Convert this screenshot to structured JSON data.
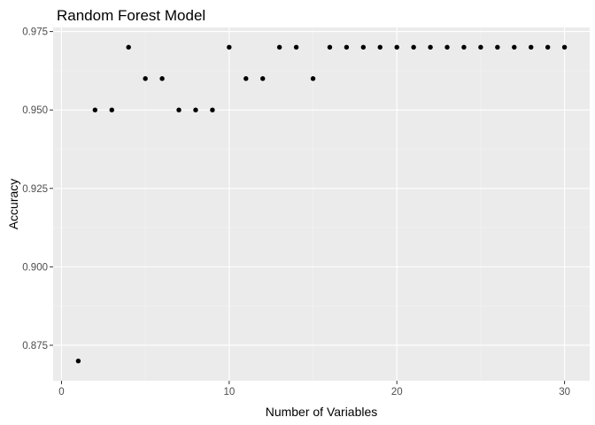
{
  "chart_data": {
    "type": "scatter",
    "title": "Random Forest Model",
    "xlabel": "Number of Variables",
    "ylabel": "Accuracy",
    "xlim": [
      -0.5,
      31.5
    ],
    "ylim": [
      0.8637,
      0.9763
    ],
    "x_ticks": [
      0,
      10,
      20,
      30
    ],
    "x_tick_labels": [
      "0",
      "10",
      "20",
      "30"
    ],
    "y_ticks": [
      0.875,
      0.9,
      0.925,
      0.95,
      0.975
    ],
    "y_tick_labels": [
      "0.875",
      "0.900",
      "0.925",
      "0.950",
      "0.975"
    ],
    "grid": true,
    "point_color": "#000000",
    "panel_color": "#ebebeb",
    "x": [
      1,
      2,
      3,
      4,
      5,
      6,
      7,
      8,
      9,
      10,
      11,
      12,
      13,
      14,
      15,
      16,
      17,
      18,
      19,
      20,
      21,
      22,
      23,
      24,
      25,
      26,
      27,
      28,
      29,
      30
    ],
    "y": [
      0.87,
      0.95,
      0.95,
      0.97,
      0.96,
      0.96,
      0.95,
      0.95,
      0.95,
      0.97,
      0.96,
      0.96,
      0.97,
      0.97,
      0.96,
      0.97,
      0.97,
      0.97,
      0.97,
      0.97,
      0.97,
      0.97,
      0.97,
      0.97,
      0.97,
      0.97,
      0.97,
      0.97,
      0.97,
      0.97
    ]
  }
}
